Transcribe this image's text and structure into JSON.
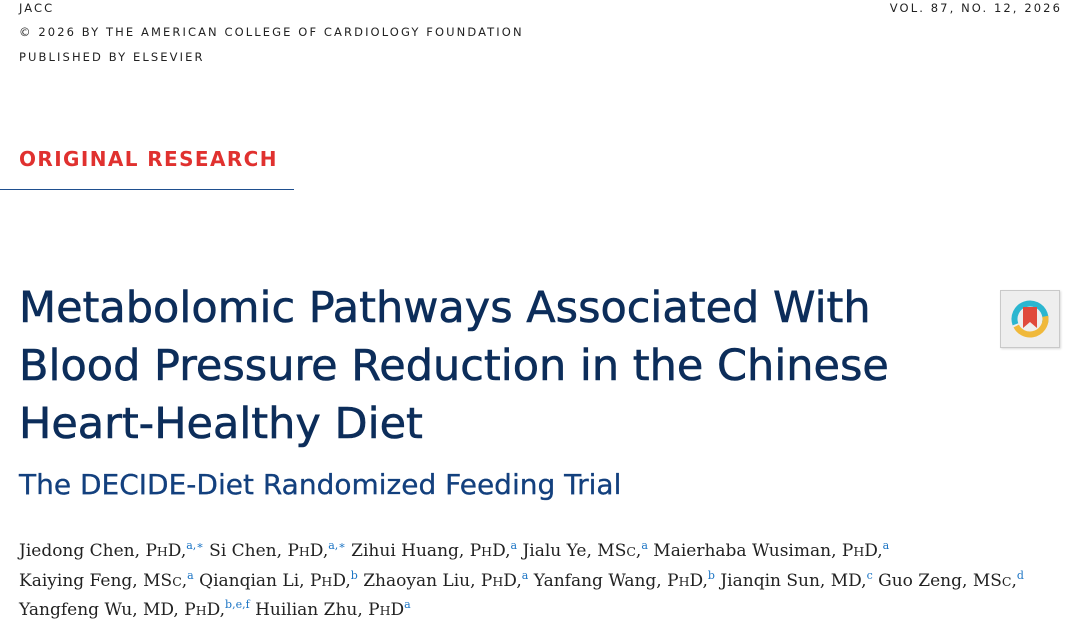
{
  "header": {
    "journal": "JACC",
    "copyright": "© 2026 BY THE AMERICAN COLLEGE OF CARDIOLOGY FOUNDATION",
    "publisher": "PUBLISHED BY ELSEVIER",
    "volume": "VOL. 87, NO. 12, 2026"
  },
  "section_label": "ORIGINAL RESEARCH",
  "title": "Metabolomic Pathways Associated With Blood Pressure Reduction in the Chinese Heart-Healthy Diet",
  "subtitle": "The DECIDE-Diet Randomized Feeding Trial",
  "crossmark": {
    "icon": "crossmark-icon",
    "colors": {
      "ring_teal": "#2bb6d0",
      "ring_yellow": "#f0b93b",
      "ribbon_red": "#e0493c"
    }
  },
  "authors": {
    "lines": [
      [
        {
          "name": "Jiedong Chen, ",
          "degree": [
            "P",
            "H",
            "D"
          ],
          "aff": "a,∗",
          "sep": " "
        },
        {
          "name": "Si Chen, ",
          "degree": [
            "P",
            "H",
            "D"
          ],
          "aff": "a,∗",
          "sep": " "
        },
        {
          "name": "Zihui Huang, ",
          "degree": [
            "P",
            "H",
            "D"
          ],
          "aff": "a",
          "sep": " "
        },
        {
          "name": "Jialu Ye, ",
          "degree": [
            "MS",
            "C",
            ""
          ],
          "aff": "a",
          "sep": " "
        },
        {
          "name": "Maierhaba Wusiman, ",
          "degree": [
            "P",
            "H",
            "D"
          ],
          "aff": "a",
          "sep": ""
        }
      ],
      [
        {
          "name": "Kaiying Feng, ",
          "degree": [
            "MS",
            "C",
            ""
          ],
          "aff": "a",
          "sep": " "
        },
        {
          "name": "Qianqian Li, ",
          "degree": [
            "P",
            "H",
            "D"
          ],
          "aff": "b",
          "sep": " "
        },
        {
          "name": "Zhaoyan Liu, ",
          "degree": [
            "P",
            "H",
            "D"
          ],
          "aff": "a",
          "sep": " "
        },
        {
          "name": "Yanfang Wang, ",
          "degree": [
            "P",
            "H",
            "D"
          ],
          "aff": "b",
          "sep": " "
        },
        {
          "name": "Jianqin Sun, MD,",
          "degree": [
            "",
            "",
            ""
          ],
          "aff": "c",
          "sep": " "
        },
        {
          "name": "Guo Zeng, ",
          "degree": [
            "MS",
            "C",
            ""
          ],
          "aff": "d",
          "sep": ""
        }
      ],
      [
        {
          "name": "Yangfeng Wu, MD, ",
          "degree": [
            "P",
            "H",
            "D"
          ],
          "aff": "b,e,f",
          "sep": " "
        },
        {
          "name": "Huilian Zhu, ",
          "degree": [
            "P",
            "H",
            "D"
          ],
          "aff": "a",
          "sep": "",
          "no_comma": true
        }
      ]
    ]
  }
}
